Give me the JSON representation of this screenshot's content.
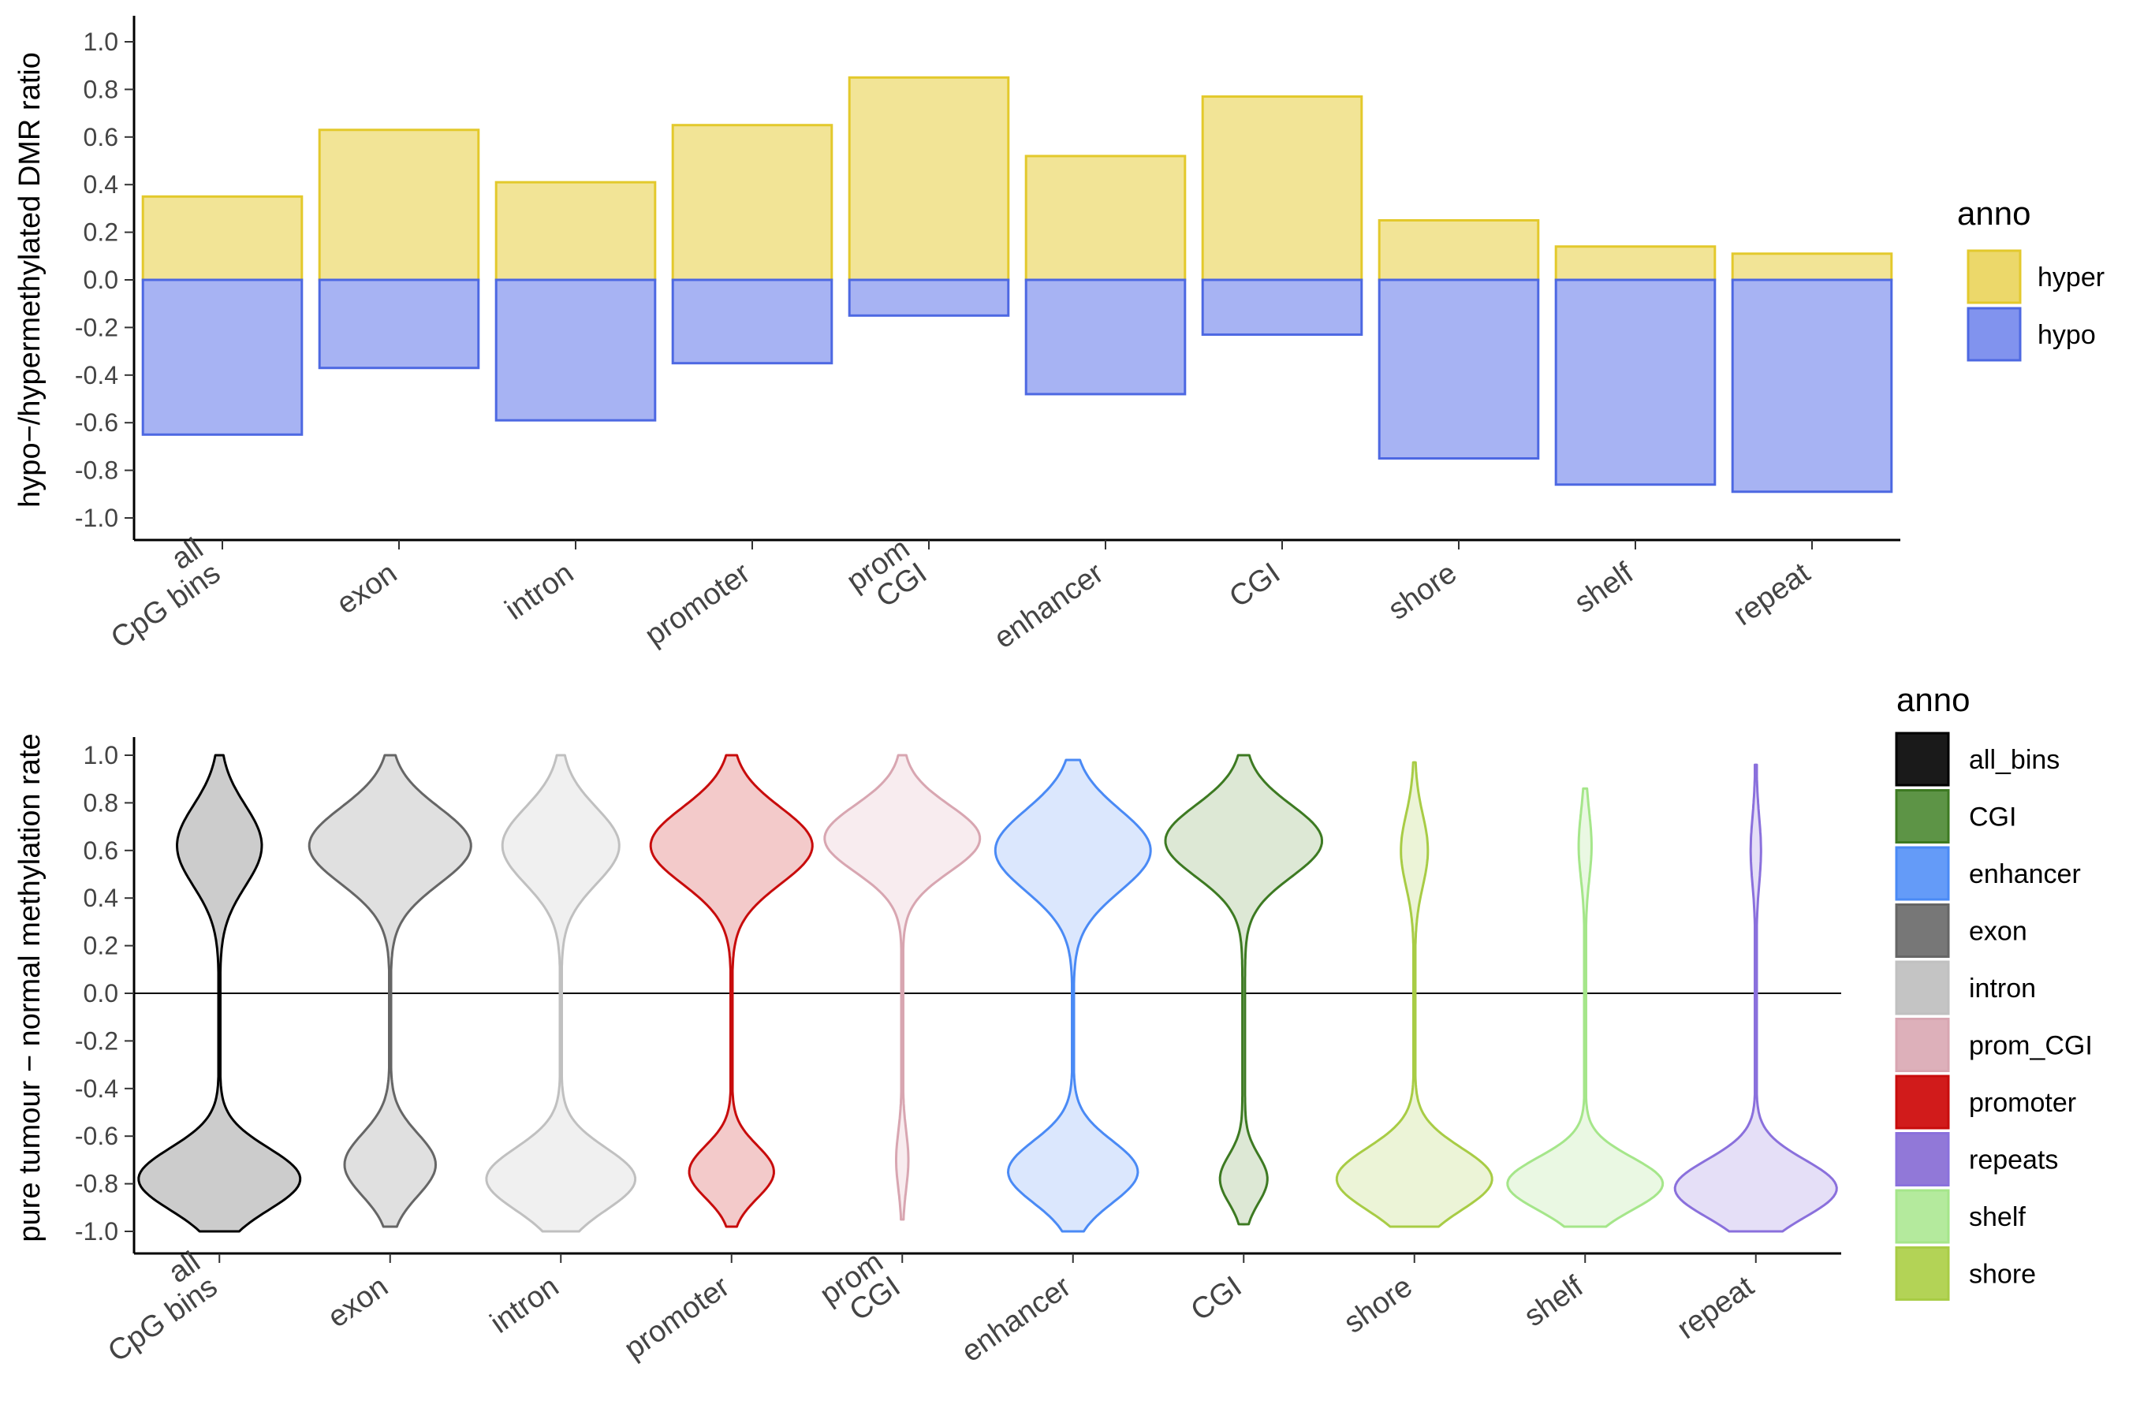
{
  "chart_data": [
    {
      "type": "bar",
      "ylabel": "hypo−/hypermethylated DMR ratio",
      "ylim": [
        -1.1,
        1.1
      ],
      "yticks": [
        "1.0",
        "0.8",
        "0.6",
        "0.4",
        "0.2",
        "0.0",
        "-0.2",
        "-0.4",
        "-0.6",
        "-0.8",
        "-1.0"
      ],
      "categories": [
        {
          "lines": [
            "all",
            "CpG bins"
          ]
        },
        {
          "lines": [
            "exon"
          ]
        },
        {
          "lines": [
            "intron"
          ]
        },
        {
          "lines": [
            "promoter"
          ]
        },
        {
          "lines": [
            "prom",
            "CGI"
          ]
        },
        {
          "lines": [
            "enhancer"
          ]
        },
        {
          "lines": [
            "CGI"
          ]
        },
        {
          "lines": [
            "shore"
          ]
        },
        {
          "lines": [
            "shelf"
          ]
        },
        {
          "lines": [
            "repeat"
          ]
        }
      ],
      "series": [
        {
          "name": "hyper",
          "fill": "#ecd86a",
          "stroke": "#e3c92c",
          "values": [
            0.35,
            0.63,
            0.41,
            0.65,
            0.85,
            0.52,
            0.77,
            0.25,
            0.14,
            0.11
          ]
        },
        {
          "name": "hypo",
          "fill": "#8193ee",
          "stroke": "#4d68e2",
          "values": [
            -0.65,
            -0.37,
            -0.59,
            -0.35,
            -0.15,
            -0.48,
            -0.23,
            -0.75,
            -0.86,
            -0.89
          ]
        }
      ],
      "legend": {
        "title": "anno",
        "position": "right"
      },
      "grid": false
    },
    {
      "type": "violin",
      "ylabel": "pure tumour − normal methylation rate",
      "ylim": [
        -1.1,
        1.1
      ],
      "yticks": [
        "1.0",
        "0.8",
        "0.6",
        "0.4",
        "0.2",
        "0.0",
        "-0.2",
        "-0.4",
        "-0.6",
        "-0.8",
        "-1.0"
      ],
      "reference_line": 0,
      "categories": [
        {
          "lines": [
            "all",
            "CpG bins"
          ]
        },
        {
          "lines": [
            "exon"
          ]
        },
        {
          "lines": [
            "intron"
          ]
        },
        {
          "lines": [
            "promoter"
          ]
        },
        {
          "lines": [
            "prom",
            "CGI"
          ]
        },
        {
          "lines": [
            "enhancer"
          ]
        },
        {
          "lines": [
            "CGI"
          ]
        },
        {
          "lines": [
            "shore"
          ]
        },
        {
          "lines": [
            "shelf"
          ]
        },
        {
          "lines": [
            "repeat"
          ]
        }
      ],
      "violins": [
        {
          "series": "all_bins",
          "range": [
            -1.0,
            1.0
          ],
          "peaks": [
            [
              0.62,
              0.17,
              0.13
            ],
            [
              -0.78,
              0.13,
              0.25
            ]
          ],
          "body": 0.002
        },
        {
          "series": "exon",
          "range": [
            -0.98,
            1.0
          ],
          "peaks": [
            [
              0.62,
              0.16,
              0.25
            ],
            [
              -0.72,
              0.13,
              0.14
            ]
          ],
          "body": 0.002
        },
        {
          "series": "intron",
          "range": [
            -1.0,
            1.0
          ],
          "peaks": [
            [
              0.62,
              0.16,
              0.18
            ],
            [
              -0.78,
              0.13,
              0.23
            ]
          ],
          "body": 0.002
        },
        {
          "series": "promoter",
          "range": [
            -0.98,
            1.0
          ],
          "peaks": [
            [
              0.62,
              0.16,
              0.25
            ],
            [
              -0.75,
              0.11,
              0.13
            ]
          ],
          "body": 0.002
        },
        {
          "series": "prom_CGI",
          "range": [
            -0.95,
            1.0
          ],
          "peaks": [
            [
              0.65,
              0.14,
              0.24
            ],
            [
              -0.7,
              0.12,
              0.017
            ]
          ],
          "body": 0.002
        },
        {
          "series": "enhancer",
          "range": [
            -1.0,
            0.98
          ],
          "peaks": [
            [
              0.6,
              0.17,
              0.24
            ],
            [
              -0.75,
              0.13,
              0.2
            ]
          ],
          "body": 0.002
        },
        {
          "series": "CGI",
          "range": [
            -0.97,
            1.0
          ],
          "peaks": [
            [
              0.64,
              0.15,
              0.24
            ],
            [
              -0.78,
              0.1,
              0.07
            ]
          ],
          "body": 0.004
        },
        {
          "series": "shore",
          "range": [
            -0.98,
            0.97
          ],
          "peaks": [
            [
              0.6,
              0.15,
              0.04
            ],
            [
              -0.78,
              0.13,
              0.24
            ]
          ],
          "body": 0.002
        },
        {
          "series": "shelf",
          "range": [
            -0.98,
            0.86
          ],
          "peaks": [
            [
              0.62,
              0.14,
              0.018
            ],
            [
              -0.8,
              0.11,
              0.24
            ]
          ],
          "body": 0.002
        },
        {
          "series": "repeats",
          "range": [
            -1.0,
            0.96
          ],
          "peaks": [
            [
              0.6,
              0.14,
              0.014
            ],
            [
              -0.82,
              0.12,
              0.25
            ]
          ],
          "body": 0.002
        }
      ],
      "legend": {
        "title": "anno",
        "position": "right",
        "entries": [
          {
            "name": "all_bins",
            "swatch": "#1a1a1a",
            "stroke": "#000000",
            "fill": "#cccccc"
          },
          {
            "name": "CGI",
            "swatch": "#5d9446",
            "stroke": "#3d7a22",
            "fill": "#dde8d5"
          },
          {
            "name": "enhancer",
            "swatch": "#649bf8",
            "stroke": "#4a8af5",
            "fill": "#dbe7fd"
          },
          {
            "name": "exon",
            "swatch": "#777777",
            "stroke": "#666666",
            "fill": "#e0e0e0"
          },
          {
            "name": "intron",
            "swatch": "#c4c4c4",
            "stroke": "#c0c0c0",
            "fill": "#f0f0f0"
          },
          {
            "name": "prom_CGI",
            "swatch": "#ddb0ba",
            "stroke": "#d8a6b1",
            "fill": "#f8ecef"
          },
          {
            "name": "promoter",
            "swatch": "#d11b1b",
            "stroke": "#c80c0c",
            "fill": "#f3caca"
          },
          {
            "name": "repeats",
            "swatch": "#9178d8",
            "stroke": "#8a70dc",
            "fill": "#e5dff7"
          },
          {
            "name": "shelf",
            "swatch": "#b4ea9d",
            "stroke": "#a5e68a",
            "fill": "#eaf8e3"
          },
          {
            "name": "shore",
            "swatch": "#b3d356",
            "stroke": "#a8cc45",
            "fill": "#ecf4d7"
          }
        ]
      },
      "grid": false
    }
  ]
}
